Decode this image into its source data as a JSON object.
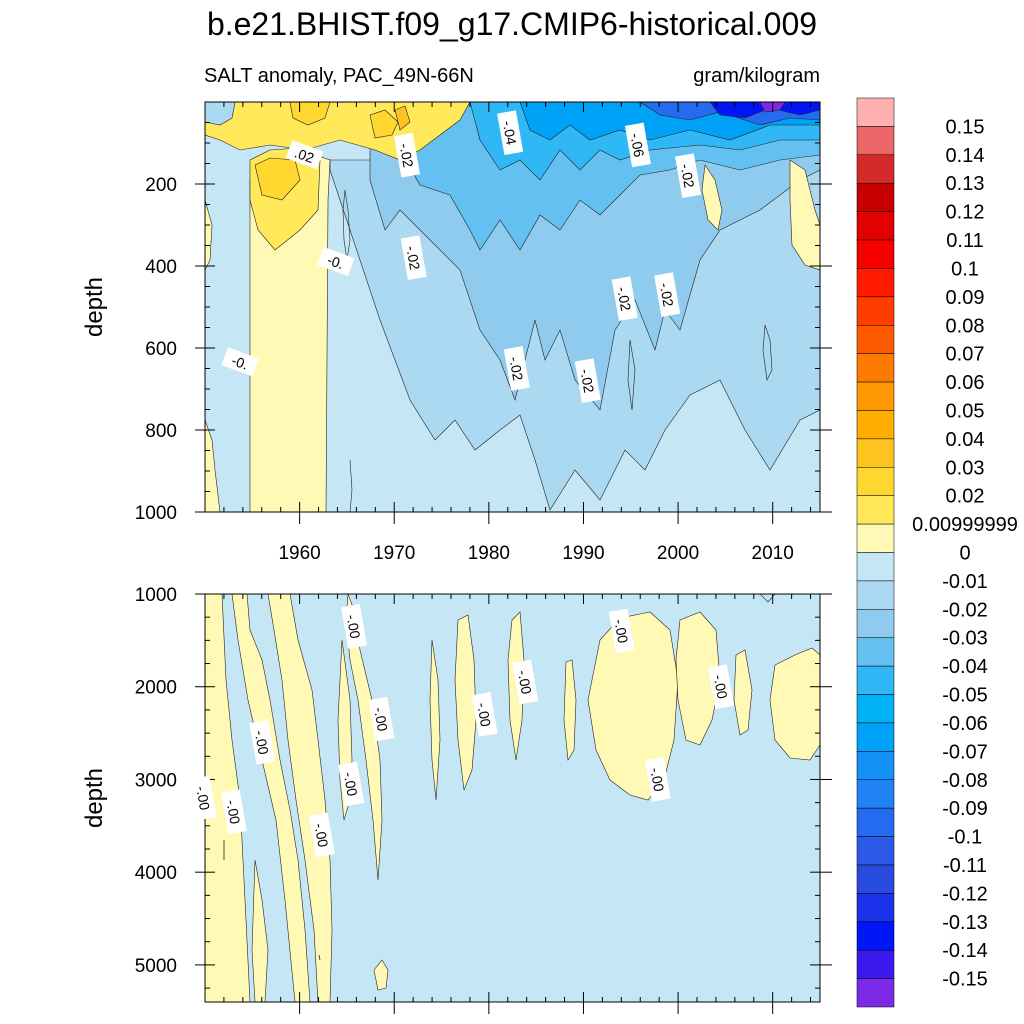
{
  "chart_data": {
    "type": "heatmap",
    "title": "b.e21.BHIST.f09_g17.CMIP6-historical.009",
    "subtitle_left": "SALT anomaly, PAC_49N-66N",
    "subtitle_right": "gram/kilogram",
    "x_range": [
      1950,
      2015
    ],
    "x_ticks": [
      1960,
      1970,
      1980,
      1990,
      2000,
      2010
    ],
    "x_tick_labels": [
      "1960",
      "1970",
      "1980",
      "1990",
      "2000",
      "2010"
    ],
    "panels": [
      {
        "name": "upper",
        "ylabel": "depth",
        "ylim": [
          0,
          1000
        ],
        "y_ticks": [
          200,
          400,
          600,
          800,
          1000
        ],
        "y_tick_labels": [
          "200",
          "400",
          "600",
          "800",
          "1000"
        ],
        "contour_labels": [
          {
            "text": ".02",
            "x": 1960.5,
            "y": 130
          },
          {
            "text": "-.02",
            "x": 1971.3,
            "y": 130
          },
          {
            "text": "-.04",
            "x": 1982.2,
            "y": 75
          },
          {
            "text": "-.06",
            "x": 1995.7,
            "y": 105
          },
          {
            "text": "-.02",
            "x": 2001.0,
            "y": 180
          },
          {
            "text": "-.02",
            "x": 1972.0,
            "y": 380
          },
          {
            "text": "-0.",
            "x": 1953.7,
            "y": 635
          },
          {
            "text": "-0.",
            "x": 1963.8,
            "y": 390
          },
          {
            "text": "-.02",
            "x": 1994.3,
            "y": 480
          },
          {
            "text": "-.02",
            "x": 1998.8,
            "y": 470
          },
          {
            "text": "-.02",
            "x": 1982.9,
            "y": 650
          },
          {
            "text": "-.02",
            "x": 1990.4,
            "y": 680
          }
        ]
      },
      {
        "name": "lower",
        "ylabel": "depth",
        "ylim": [
          1000,
          5400
        ],
        "y_ticks": [
          1000,
          2000,
          3000,
          4000,
          5000
        ],
        "y_tick_labels": [
          "1000",
          "2000",
          "3000",
          "4000",
          "5000"
        ],
        "contour_labels": [
          {
            "text": "-.00",
            "x": 1956.0,
            "y": 2600
          },
          {
            "text": "-.00",
            "x": 1953.0,
            "y": 3350
          },
          {
            "text": "-.00",
            "x": 1949.8,
            "y": 3200
          },
          {
            "text": "-.00",
            "x": 1962.3,
            "y": 3600
          },
          {
            "text": "-.00",
            "x": 1965.7,
            "y": 1350
          },
          {
            "text": "-.00",
            "x": 1968.6,
            "y": 2350
          },
          {
            "text": "-.00",
            "x": 1965.4,
            "y": 3050
          },
          {
            "text": "-.00",
            "x": 1979.5,
            "y": 2300
          },
          {
            "text": "-.00",
            "x": 1983.8,
            "y": 1950
          },
          {
            "text": "-.00",
            "x": 1994.0,
            "y": 1400
          },
          {
            "text": "-.00",
            "x": 1997.8,
            "y": 3000
          },
          {
            "text": "-.00",
            "x": 2004.5,
            "y": 2000
          }
        ]
      }
    ],
    "colorbar": {
      "labels": [
        "0.15",
        "0.14",
        "0.13",
        "0.12",
        "0.11",
        "0.1",
        "0.09",
        "0.08",
        "0.07",
        "0.06",
        "0.05",
        "0.04",
        "0.03",
        "0.02",
        "0.00999999",
        "0",
        "-0.01",
        "-0.02",
        "-0.03",
        "-0.04",
        "-0.05",
        "-0.06",
        "-0.07",
        "-0.08",
        "-0.09",
        "-0.1",
        "-0.11",
        "-0.12",
        "-0.13",
        "-0.14",
        "-0.15"
      ],
      "colors": [
        "#ffb1b1",
        "#eb6767",
        "#d42a2a",
        "#c80000",
        "#e30000",
        "#f70000",
        "#ff1a00",
        "#ff3d00",
        "#ff5a00",
        "#ff7a00",
        "#ff9800",
        "#ffad00",
        "#ffc31d",
        "#ffd72e",
        "#ffe85a",
        "#fff9b5",
        "#c4e6f5",
        "#abd9f1",
        "#8fcbee",
        "#65c0f2",
        "#2fb8f5",
        "#00b1f5",
        "#00a2f7",
        "#1391f7",
        "#1f82f5",
        "#246bf0",
        "#2c5ae6",
        "#294adf",
        "#1a32e9",
        "#0016f5",
        "#3a1aef",
        "#7d2ae8"
      ]
    }
  }
}
